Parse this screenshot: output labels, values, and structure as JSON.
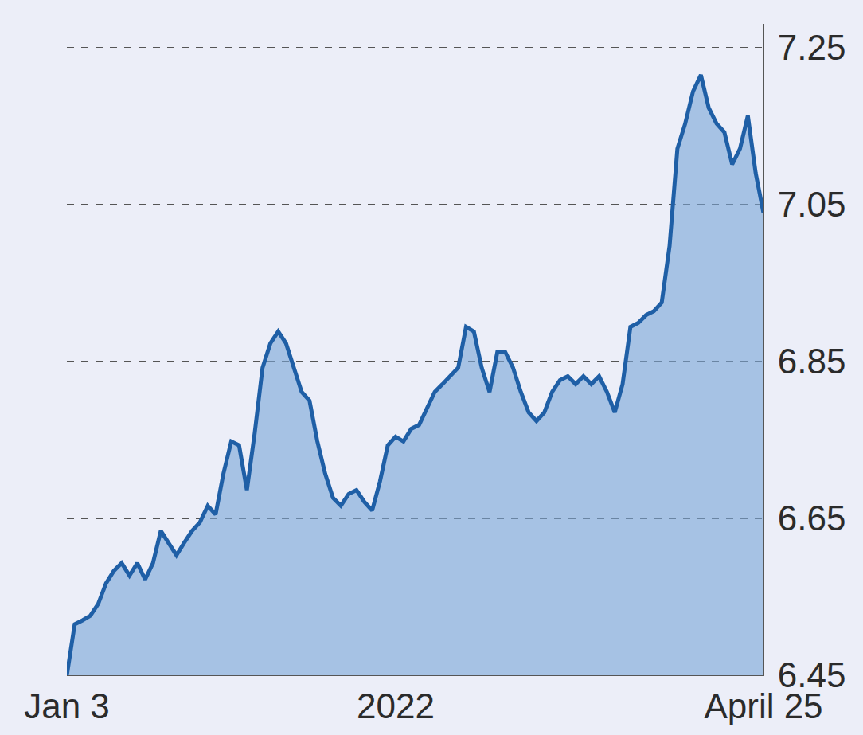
{
  "chart_data": {
    "type": "area",
    "categories": [
      "Jan 3",
      null,
      null,
      null,
      null,
      null,
      null,
      null,
      null,
      null,
      null,
      null,
      null,
      null,
      null,
      null,
      null,
      null,
      null,
      null,
      null,
      null,
      null,
      null,
      null,
      null,
      null,
      null,
      null,
      null,
      null,
      null,
      null,
      null,
      null,
      null,
      null,
      null,
      null,
      null,
      null,
      null,
      "2022",
      null,
      null,
      null,
      null,
      null,
      null,
      null,
      null,
      null,
      null,
      null,
      null,
      null,
      null,
      null,
      null,
      null,
      null,
      null,
      null,
      null,
      null,
      null,
      null,
      null,
      null,
      null,
      null,
      null,
      null,
      null,
      null,
      null,
      null,
      null,
      null,
      null,
      null,
      null,
      null,
      null,
      null,
      null,
      null,
      null,
      null,
      "April 25"
    ],
    "values": [
      6.45,
      6.515,
      6.52,
      6.526,
      6.541,
      6.567,
      6.583,
      6.593,
      6.577,
      6.593,
      6.572,
      6.593,
      6.634,
      6.619,
      6.603,
      6.619,
      6.634,
      6.645,
      6.666,
      6.655,
      6.707,
      6.748,
      6.743,
      6.686,
      6.759,
      6.842,
      6.873,
      6.888,
      6.873,
      6.842,
      6.811,
      6.8,
      6.748,
      6.707,
      6.676,
      6.666,
      6.681,
      6.686,
      6.671,
      6.66,
      6.697,
      6.743,
      6.754,
      6.748,
      6.764,
      6.769,
      6.79,
      6.811,
      6.821,
      6.831,
      6.842,
      6.894,
      6.888,
      6.842,
      6.811,
      6.862,
      6.862,
      6.842,
      6.811,
      6.785,
      6.774,
      6.785,
      6.811,
      6.826,
      6.831,
      6.821,
      6.831,
      6.821,
      6.831,
      6.811,
      6.785,
      6.821,
      6.894,
      6.899,
      6.909,
      6.914,
      6.925,
      6.997,
      7.121,
      7.153,
      7.194,
      7.215,
      7.173,
      7.153,
      7.142,
      7.101,
      7.121,
      7.163,
      7.09,
      7.039
    ],
    "color": "#1f5fa6",
    "ylim": [
      6.45,
      7.28
    ],
    "yticks": [
      6.45,
      6.65,
      6.85,
      7.05,
      7.25
    ],
    "grid": true
  }
}
